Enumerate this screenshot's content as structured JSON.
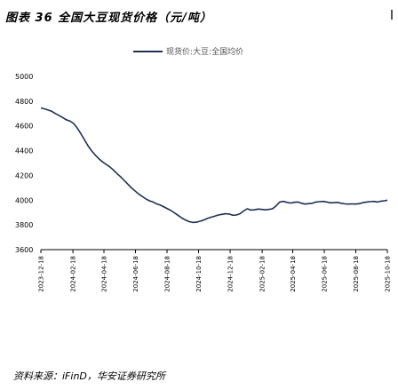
{
  "chart_data": {
    "type": "line",
    "title": "图表 36 全国大豆现货价格（元/吨）",
    "source": "资料来源：iFinD，华安证券研究所",
    "series": [
      {
        "name": "现货价:大豆:全国均价",
        "color": "#1f2e54",
        "points": [
          [
            "2023-12-18",
            4745
          ],
          [
            "2023-12-25",
            4738
          ],
          [
            "2024-01-01",
            4728
          ],
          [
            "2024-01-08",
            4718
          ],
          [
            "2024-01-15",
            4700
          ],
          [
            "2024-01-22",
            4685
          ],
          [
            "2024-01-29",
            4668
          ],
          [
            "2024-02-05",
            4650
          ],
          [
            "2024-02-12",
            4640
          ],
          [
            "2024-02-19",
            4620
          ],
          [
            "2024-02-26",
            4585
          ],
          [
            "2024-03-04",
            4540
          ],
          [
            "2024-03-11",
            4490
          ],
          [
            "2024-03-18",
            4440
          ],
          [
            "2024-03-25",
            4400
          ],
          [
            "2024-04-01",
            4365
          ],
          [
            "2024-04-08",
            4335
          ],
          [
            "2024-04-15",
            4310
          ],
          [
            "2024-04-22",
            4290
          ],
          [
            "2024-04-29",
            4270
          ],
          [
            "2024-05-06",
            4245
          ],
          [
            "2024-05-13",
            4215
          ],
          [
            "2024-05-20",
            4190
          ],
          [
            "2024-05-27",
            4160
          ],
          [
            "2024-06-03",
            4130
          ],
          [
            "2024-06-10",
            4100
          ],
          [
            "2024-06-17",
            4075
          ],
          [
            "2024-06-24",
            4050
          ],
          [
            "2024-07-01",
            4030
          ],
          [
            "2024-07-08",
            4010
          ],
          [
            "2024-07-15",
            3995
          ],
          [
            "2024-07-22",
            3985
          ],
          [
            "2024-07-29",
            3970
          ],
          [
            "2024-08-05",
            3960
          ],
          [
            "2024-08-12",
            3945
          ],
          [
            "2024-08-19",
            3930
          ],
          [
            "2024-08-26",
            3915
          ],
          [
            "2024-09-02",
            3895
          ],
          [
            "2024-09-09",
            3875
          ],
          [
            "2024-09-16",
            3855
          ],
          [
            "2024-09-23",
            3838
          ],
          [
            "2024-09-30",
            3826
          ],
          [
            "2024-10-07",
            3820
          ],
          [
            "2024-10-14",
            3822
          ],
          [
            "2024-10-21",
            3830
          ],
          [
            "2024-10-28",
            3840
          ],
          [
            "2024-11-04",
            3852
          ],
          [
            "2024-11-11",
            3862
          ],
          [
            "2024-11-18",
            3870
          ],
          [
            "2024-11-25",
            3880
          ],
          [
            "2024-12-02",
            3885
          ],
          [
            "2024-12-09",
            3890
          ],
          [
            "2024-12-16",
            3888
          ],
          [
            "2024-12-23",
            3878
          ],
          [
            "2024-12-30",
            3880
          ],
          [
            "2025-01-06",
            3890
          ],
          [
            "2025-01-13",
            3912
          ],
          [
            "2025-01-20",
            3930
          ],
          [
            "2025-01-27",
            3920
          ],
          [
            "2025-02-03",
            3922
          ],
          [
            "2025-02-10",
            3928
          ],
          [
            "2025-02-17",
            3925
          ],
          [
            "2025-02-24",
            3922
          ],
          [
            "2025-03-03",
            3925
          ],
          [
            "2025-03-10",
            3930
          ],
          [
            "2025-03-17",
            3955
          ],
          [
            "2025-03-24",
            3985
          ],
          [
            "2025-03-31",
            3990
          ],
          [
            "2025-04-07",
            3982
          ],
          [
            "2025-04-14",
            3976
          ],
          [
            "2025-04-21",
            3983
          ],
          [
            "2025-04-28",
            3985
          ],
          [
            "2025-05-05",
            3975
          ],
          [
            "2025-05-12",
            3968
          ],
          [
            "2025-05-19",
            3972
          ],
          [
            "2025-05-26",
            3975
          ],
          [
            "2025-06-02",
            3985
          ],
          [
            "2025-06-09",
            3988
          ],
          [
            "2025-06-16",
            3990
          ],
          [
            "2025-06-23",
            3985
          ],
          [
            "2025-06-30",
            3978
          ],
          [
            "2025-07-07",
            3980
          ],
          [
            "2025-07-14",
            3982
          ],
          [
            "2025-07-21",
            3975
          ],
          [
            "2025-07-28",
            3970
          ],
          [
            "2025-08-04",
            3968
          ],
          [
            "2025-08-11",
            3970
          ],
          [
            "2025-08-18",
            3968
          ],
          [
            "2025-08-25",
            3972
          ],
          [
            "2025-09-01",
            3980
          ],
          [
            "2025-09-08",
            3985
          ],
          [
            "2025-09-15",
            3988
          ],
          [
            "2025-09-22",
            3990
          ],
          [
            "2025-09-29",
            3985
          ],
          [
            "2025-10-06",
            3992
          ],
          [
            "2025-10-13",
            3995
          ],
          [
            "2025-10-18",
            4000
          ]
        ]
      }
    ],
    "x_tick_labels": [
      "2023-12-18",
      "2024-02-18",
      "2024-04-18",
      "2024-06-18",
      "2024-08-18",
      "2024-10-18",
      "2024-12-18",
      "2025-02-18",
      "2025-04-18",
      "2025-06-18",
      "2025-08-18",
      "2025-10-18"
    ],
    "x_range": [
      "2023-12-18",
      "2025-10-18"
    ],
    "y_ticks": [
      3600,
      3800,
      4000,
      4200,
      4400,
      4600,
      4800,
      5000
    ],
    "ylim": [
      3600,
      5000
    ],
    "grid": false,
    "legend_position": "top-center"
  }
}
